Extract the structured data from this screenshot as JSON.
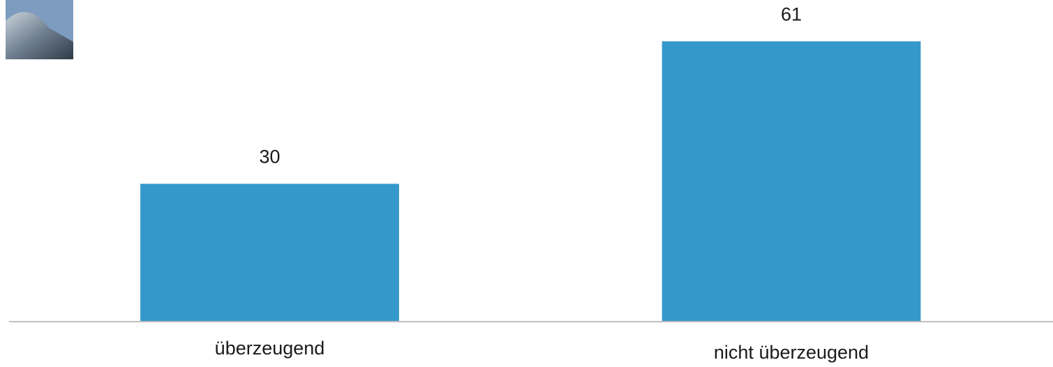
{
  "chart_data": {
    "type": "bar",
    "categories": [
      "überzeugend",
      "nicht überzeugend"
    ],
    "values": [
      30,
      61
    ],
    "color": "#3498cb",
    "ylim": [
      0,
      70
    ]
  }
}
